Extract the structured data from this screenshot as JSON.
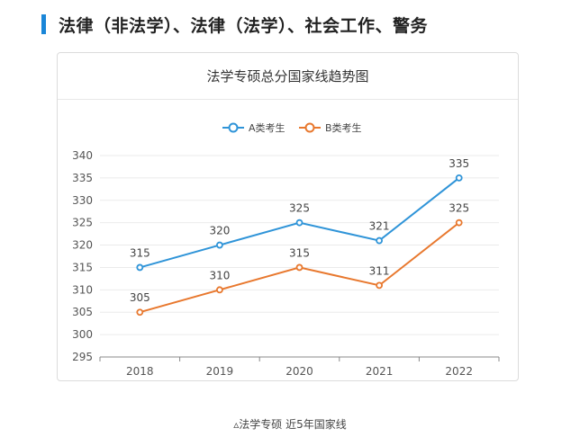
{
  "heading": "法律（非法学）、法律（法学）、社会工作、警务",
  "caption": "▵法学专硕 近5年国家线",
  "colors": {
    "accent": "#1a86d8",
    "seriesA": "#2f94d8",
    "seriesB": "#e8782e"
  },
  "chart_data": {
    "type": "line",
    "title": "法学专硕总分国家线趋势图",
    "categories": [
      "2018",
      "2019",
      "2020",
      "2021",
      "2022"
    ],
    "series": [
      {
        "name": "A类考生",
        "values": [
          315,
          320,
          325,
          321,
          335
        ],
        "color": "#2f94d8"
      },
      {
        "name": "B类考生",
        "values": [
          305,
          310,
          315,
          311,
          325
        ],
        "color": "#e8782e"
      }
    ],
    "yticks": [
      295,
      300,
      305,
      310,
      315,
      320,
      325,
      330,
      335,
      340
    ],
    "ylim": [
      295,
      340
    ],
    "grid": true,
    "legend": "top-center",
    "data_labels": true
  }
}
